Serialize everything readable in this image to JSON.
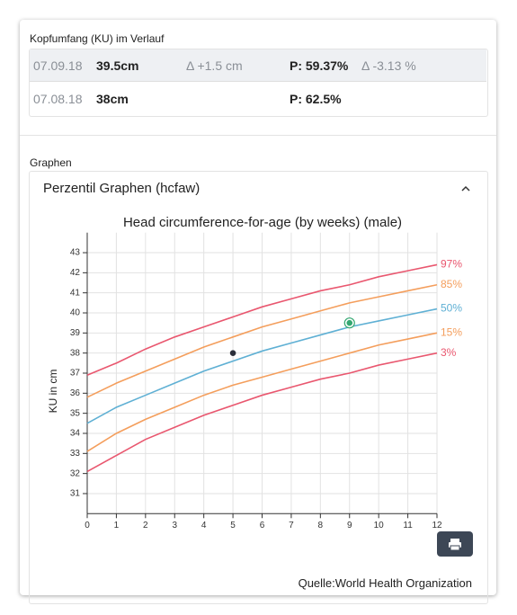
{
  "header": {
    "title": "Kopfumfang (KU) im Verlauf"
  },
  "table": {
    "rows": [
      {
        "date": "07.09.18",
        "value": "39.5cm",
        "delta": "Δ +1.5 cm",
        "percentile": "P: 59.37%",
        "percentile_delta": "Δ -3.13 %"
      },
      {
        "date": "07.08.18",
        "value": "38cm",
        "percentile": "P: 62.5%"
      }
    ]
  },
  "section": {
    "title": "Graphen"
  },
  "panel": {
    "title": "Perzentil Graphen (hcfaw)"
  },
  "chart_data": {
    "type": "line",
    "title": "Head circumference-for-age (by weeks) (male)",
    "ylabel": "KU in cm",
    "x": [
      0,
      1,
      2,
      3,
      4,
      5,
      6,
      7,
      8,
      9,
      10,
      11,
      12
    ],
    "xlim": [
      0,
      12
    ],
    "ylim": [
      30,
      44
    ],
    "xticks": [
      0,
      1,
      2,
      3,
      4,
      5,
      6,
      7,
      8,
      9,
      10,
      11,
      12
    ],
    "yticks": [
      31,
      32,
      33,
      34,
      35,
      36,
      37,
      38,
      39,
      40,
      41,
      42,
      43
    ],
    "grid": true,
    "series": [
      {
        "name": "97%",
        "color": "#e9576f",
        "values": [
          36.9,
          37.5,
          38.2,
          38.8,
          39.3,
          39.8,
          40.3,
          40.7,
          41.1,
          41.4,
          41.8,
          42.1,
          42.4
        ]
      },
      {
        "name": "85%",
        "color": "#f49e5c",
        "values": [
          35.8,
          36.5,
          37.1,
          37.7,
          38.3,
          38.8,
          39.3,
          39.7,
          40.1,
          40.5,
          40.8,
          41.1,
          41.4
        ]
      },
      {
        "name": "50%",
        "color": "#5fb0d4",
        "values": [
          34.5,
          35.3,
          35.9,
          36.5,
          37.1,
          37.6,
          38.1,
          38.5,
          38.9,
          39.3,
          39.6,
          39.9,
          40.2
        ]
      },
      {
        "name": "15%",
        "color": "#f49e5c",
        "values": [
          33.1,
          34.0,
          34.7,
          35.3,
          35.9,
          36.4,
          36.8,
          37.2,
          37.6,
          38.0,
          38.4,
          38.7,
          39.0
        ]
      },
      {
        "name": "3%",
        "color": "#e9576f",
        "values": [
          32.1,
          32.9,
          33.7,
          34.3,
          34.9,
          35.4,
          35.9,
          36.3,
          36.7,
          37.0,
          37.4,
          37.7,
          38.0
        ]
      }
    ],
    "points": [
      {
        "x": 5,
        "y": 38.0,
        "color": "#2b2f3a"
      },
      {
        "x": 9,
        "y": 39.5,
        "color": "#35a872",
        "highlight": true
      }
    ]
  },
  "footer": {
    "source": "Quelle:World Health Organization"
  }
}
